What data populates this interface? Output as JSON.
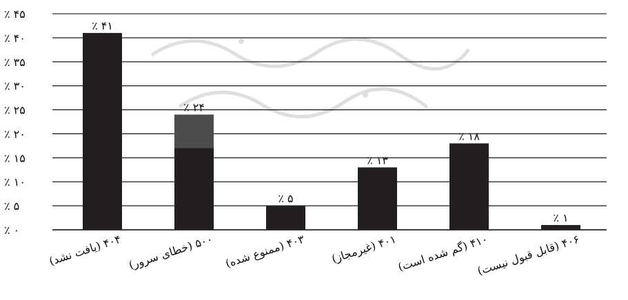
{
  "chart_data": {
    "type": "bar",
    "title": "",
    "xlabel": "",
    "ylabel": "",
    "ylim": [
      0,
      45
    ],
    "grid": true,
    "legend": "none",
    "yticks": [
      "٪ ۰",
      "٪ ۵",
      "٪ ۱۰",
      "٪ ۱۵",
      "٪ ۲۰",
      "٪ ۲۵",
      "٪ ۳۰",
      "٪ ۳۵",
      "٪ ۴۰",
      "٪ ۴۵"
    ],
    "ytick_values": [
      0,
      5,
      10,
      15,
      20,
      25,
      30,
      35,
      40,
      45
    ],
    "categories": [
      "(یافت نشد) ۴۰۴",
      "(خطای سرور) ۵۰۰",
      "(ممنوع شده) ۴۰۳",
      "(غیرمجاز) ۴۰۱",
      "(گم شده است) ۴۱۰",
      "(قابل قبول نیست) ۴۰۶"
    ],
    "values": [
      41,
      24,
      5,
      13,
      18,
      1
    ],
    "labels": [
      "٪ ۴۱",
      "٪ ۲۴",
      "٪ ۵",
      "٪ ۱۳",
      "٪ ۱۸",
      "٪ ۱"
    ],
    "highlight": {
      "index": 1,
      "from": 17,
      "to": 24
    },
    "colors": {
      "bar": "#231f20",
      "highlight": "#4d4d4d",
      "grid": "#000000"
    }
  }
}
